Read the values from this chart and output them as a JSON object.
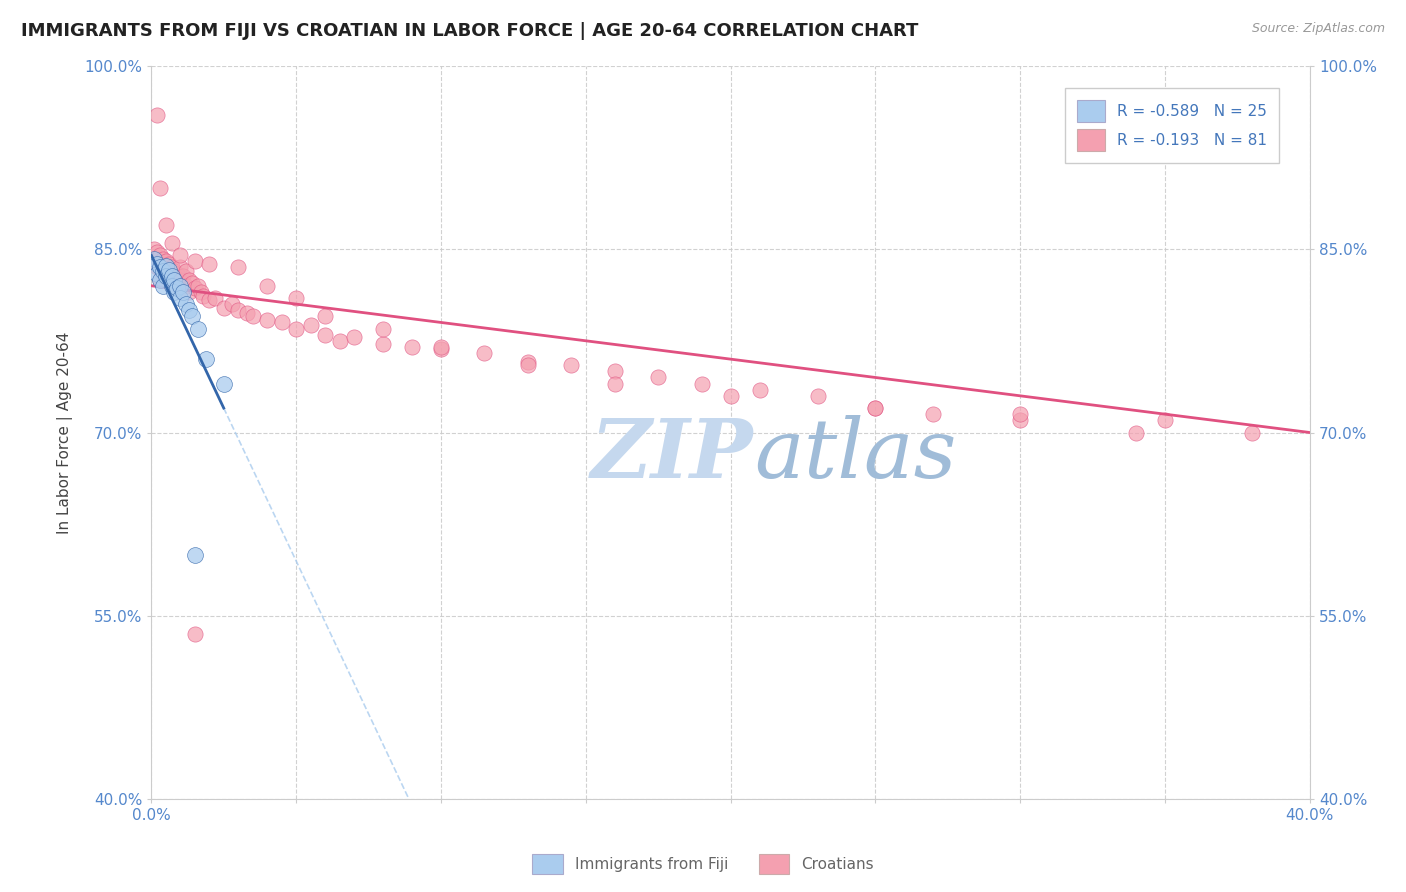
{
  "title": "IMMIGRANTS FROM FIJI VS CROATIAN IN LABOR FORCE | AGE 20-64 CORRELATION CHART",
  "source": "Source: ZipAtlas.com",
  "ylabel": "In Labor Force | Age 20-64",
  "xlim": [
    0.0,
    0.4
  ],
  "ylim": [
    0.4,
    1.0
  ],
  "yticks": [
    0.4,
    0.55,
    0.7,
    0.85,
    1.0
  ],
  "yticklabels": [
    "40.0%",
    "55.0%",
    "70.0%",
    "85.0%",
    "100.0%"
  ],
  "xticks": [
    0.0,
    0.05,
    0.1,
    0.15,
    0.2,
    0.25,
    0.3,
    0.35,
    0.4
  ],
  "xticklabels": [
    "0.0%",
    "",
    "",
    "",
    "",
    "",
    "",
    "",
    "40.0%"
  ],
  "fiji_R": -0.589,
  "fiji_N": 25,
  "croatian_R": -0.193,
  "croatian_N": 81,
  "fiji_color": "#aaccee",
  "croatian_color": "#f4a0b0",
  "fiji_trend_color": "#3366aa",
  "croatian_trend_color": "#e05080",
  "fiji_dash_color": "#aaccee",
  "watermark_zip": "ZIP",
  "watermark_atlas": "atlas",
  "watermark_color_zip": "#c5d8ee",
  "watermark_color_atlas": "#a0bcd8",
  "fiji_x": [
    0.001,
    0.002,
    0.002,
    0.003,
    0.003,
    0.004,
    0.004,
    0.005,
    0.005,
    0.006,
    0.007,
    0.007,
    0.008,
    0.008,
    0.009,
    0.01,
    0.01,
    0.011,
    0.012,
    0.013,
    0.014,
    0.016,
    0.019,
    0.025,
    0.015
  ],
  "fiji_y": [
    0.842,
    0.838,
    0.83,
    0.835,
    0.825,
    0.832,
    0.82,
    0.836,
    0.828,
    0.833,
    0.828,
    0.82,
    0.825,
    0.815,
    0.818,
    0.82,
    0.81,
    0.815,
    0.805,
    0.8,
    0.795,
    0.785,
    0.76,
    0.74,
    0.6
  ],
  "croatian_x": [
    0.001,
    0.001,
    0.002,
    0.002,
    0.003,
    0.003,
    0.003,
    0.004,
    0.004,
    0.005,
    0.005,
    0.006,
    0.006,
    0.007,
    0.007,
    0.008,
    0.008,
    0.009,
    0.009,
    0.01,
    0.01,
    0.011,
    0.012,
    0.012,
    0.013,
    0.013,
    0.014,
    0.015,
    0.016,
    0.017,
    0.018,
    0.02,
    0.022,
    0.025,
    0.028,
    0.03,
    0.033,
    0.035,
    0.04,
    0.045,
    0.05,
    0.055,
    0.06,
    0.065,
    0.07,
    0.08,
    0.09,
    0.1,
    0.115,
    0.13,
    0.145,
    0.16,
    0.175,
    0.19,
    0.21,
    0.23,
    0.25,
    0.27,
    0.3,
    0.34,
    0.002,
    0.003,
    0.005,
    0.007,
    0.01,
    0.015,
    0.02,
    0.03,
    0.04,
    0.05,
    0.06,
    0.08,
    0.1,
    0.13,
    0.16,
    0.2,
    0.25,
    0.3,
    0.35,
    0.38,
    0.015
  ],
  "croatian_y": [
    0.85,
    0.84,
    0.848,
    0.835,
    0.845,
    0.838,
    0.825,
    0.842,
    0.828,
    0.84,
    0.832,
    0.838,
    0.825,
    0.835,
    0.82,
    0.832,
    0.822,
    0.83,
    0.818,
    0.835,
    0.825,
    0.828,
    0.832,
    0.82,
    0.825,
    0.815,
    0.822,
    0.818,
    0.82,
    0.815,
    0.812,
    0.808,
    0.81,
    0.802,
    0.805,
    0.8,
    0.798,
    0.795,
    0.792,
    0.79,
    0.785,
    0.788,
    0.78,
    0.775,
    0.778,
    0.772,
    0.77,
    0.768,
    0.765,
    0.758,
    0.755,
    0.75,
    0.745,
    0.74,
    0.735,
    0.73,
    0.72,
    0.715,
    0.71,
    0.7,
    0.96,
    0.9,
    0.87,
    0.855,
    0.845,
    0.84,
    0.838,
    0.835,
    0.82,
    0.81,
    0.795,
    0.785,
    0.77,
    0.755,
    0.74,
    0.73,
    0.72,
    0.715,
    0.71,
    0.7,
    0.535
  ]
}
